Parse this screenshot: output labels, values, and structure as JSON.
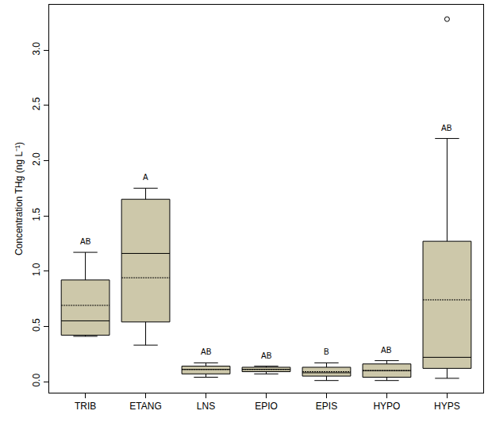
{
  "chart_data": {
    "type": "box",
    "y_label": "Concentration THg (ng L⁻¹)",
    "categories": [
      "TRIB",
      "ETANG",
      "LNS",
      "EPIO",
      "EPIS",
      "HYPO",
      "HYPS"
    ],
    "lower": [
      0.41,
      0.33,
      0.04,
      0.07,
      0.01,
      0.01,
      0.03
    ],
    "q1": [
      0.42,
      0.54,
      0.07,
      0.09,
      0.05,
      0.04,
      0.12
    ],
    "median": [
      0.55,
      1.16,
      0.11,
      0.11,
      0.08,
      0.1,
      0.22
    ],
    "q3": [
      0.92,
      1.65,
      0.14,
      0.13,
      0.13,
      0.16,
      1.27
    ],
    "upper": [
      1.17,
      1.75,
      0.17,
      0.14,
      0.17,
      0.19,
      2.2
    ],
    "mean": [
      0.69,
      0.94,
      0.11,
      0.11,
      0.09,
      0.1,
      0.74
    ],
    "outliers": [
      {
        "category": "HYPS",
        "value": 3.28
      }
    ],
    "letters": [
      "AB",
      "A",
      "AB",
      "AB",
      "B",
      "AB",
      "AB"
    ],
    "color": "#cdc8aa",
    "ylim": [
      -0.1,
      3.41
    ],
    "yticks": [
      {
        "value": 0,
        "label": "0.0"
      },
      0.5,
      {
        "value": 1,
        "label": "1.0"
      },
      1.5,
      {
        "value": 2,
        "label": "2.0"
      },
      2.5,
      {
        "value": 3,
        "label": "3.0"
      }
    ]
  }
}
